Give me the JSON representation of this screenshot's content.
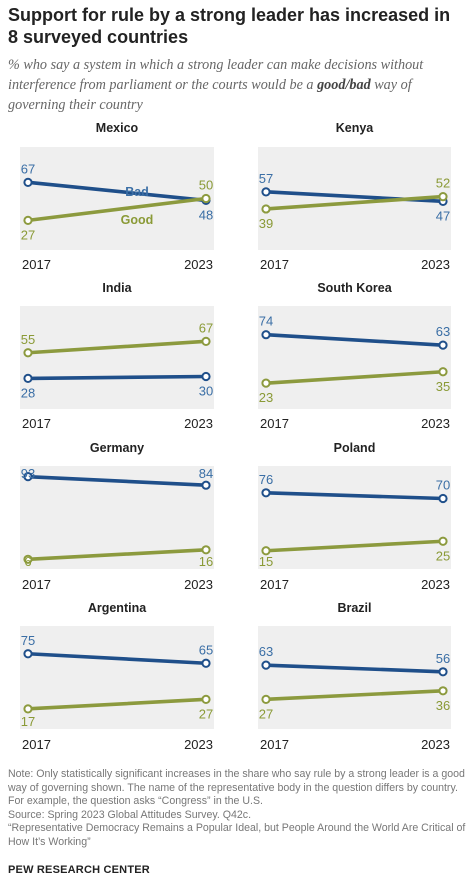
{
  "title": "Support for rule by a strong leader has increased in 8 surveyed countries",
  "subtitle": {
    "prefix": "% who say a system in which a strong leader can make decisions without interference from parliament or the courts would be a ",
    "key": "good/bad",
    "suffix": " way of governing their country"
  },
  "colors": {
    "bad": "#1f4f8a",
    "good": "#8c9a3e",
    "panel_bg": "#efefef",
    "bad_label": "#3a6ea5",
    "good_label": "#8a9a36"
  },
  "chart_data": {
    "type": "line",
    "x": [
      "2017",
      "2023"
    ],
    "series_names": [
      "Bad",
      "Good"
    ],
    "panels": [
      {
        "title": "Mexico",
        "series": [
          {
            "name": "Bad",
            "values": [
              67,
              48
            ]
          },
          {
            "name": "Good",
            "values": [
              27,
              50
            ]
          }
        ],
        "series_labels_shown": true
      },
      {
        "title": "Kenya",
        "series": [
          {
            "name": "Bad",
            "values": [
              57,
              47
            ]
          },
          {
            "name": "Good",
            "values": [
              39,
              52
            ]
          }
        ]
      },
      {
        "title": "India",
        "series": [
          {
            "name": "Bad",
            "values": [
              28,
              30
            ]
          },
          {
            "name": "Good",
            "values": [
              55,
              67
            ]
          }
        ]
      },
      {
        "title": "South Korea",
        "series": [
          {
            "name": "Bad",
            "values": [
              74,
              63
            ]
          },
          {
            "name": "Good",
            "values": [
              23,
              35
            ]
          }
        ]
      },
      {
        "title": "Germany",
        "series": [
          {
            "name": "Bad",
            "values": [
              93,
              84
            ]
          },
          {
            "name": "Good",
            "values": [
              6,
              16
            ]
          }
        ]
      },
      {
        "title": "Poland",
        "series": [
          {
            "name": "Bad",
            "values": [
              76,
              70
            ]
          },
          {
            "name": "Good",
            "values": [
              15,
              25
            ]
          }
        ]
      },
      {
        "title": "Argentina",
        "series": [
          {
            "name": "Bad",
            "values": [
              75,
              65
            ]
          },
          {
            "name": "Good",
            "values": [
              17,
              27
            ]
          }
        ]
      },
      {
        "title": "Brazil",
        "series": [
          {
            "name": "Bad",
            "values": [
              63,
              56
            ]
          },
          {
            "name": "Good",
            "values": [
              27,
              36
            ]
          }
        ]
      }
    ]
  },
  "notes": [
    "Note: Only statistically significant increases in the share who say rule by a strong leader is a good way of governing shown. The name of the representative body in the question differs by country. For example, the question asks “Congress” in the U.S.",
    "Source: Spring 2023 Global Attitudes Survey. Q42c.",
    "“Representative Democracy Remains a Popular Ideal, but People Around the World Are Critical of How It’s Working”"
  ],
  "brand": "PEW RESEARCH CENTER"
}
